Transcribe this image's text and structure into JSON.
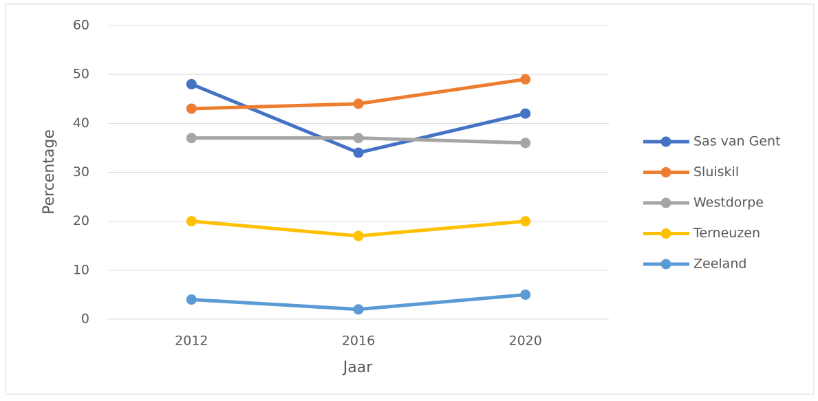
{
  "chart_data": {
    "type": "line",
    "x_label": "Jaar",
    "y_label": "Percentage",
    "categories": [
      "2012",
      "2016",
      "2020"
    ],
    "series": [
      {
        "name": "Sas van Gent",
        "color": "#4472c4",
        "values": [
          48,
          34,
          42
        ]
      },
      {
        "name": "Sluiskil",
        "color": "#ed7d31",
        "values": [
          43,
          44,
          49
        ]
      },
      {
        "name": "Westdorpe",
        "color": "#a5a5a5",
        "values": [
          37,
          37,
          36
        ]
      },
      {
        "name": "Terneuzen",
        "color": "#ffc000",
        "values": [
          20,
          17,
          20
        ]
      },
      {
        "name": "Zeeland",
        "color": "#5b9bd5",
        "values": [
          4,
          2,
          5
        ]
      }
    ],
    "ylim": [
      0,
      60
    ],
    "yticks": [
      0,
      10,
      20,
      30,
      40,
      50,
      60
    ],
    "grid": true,
    "legend": "right"
  }
}
